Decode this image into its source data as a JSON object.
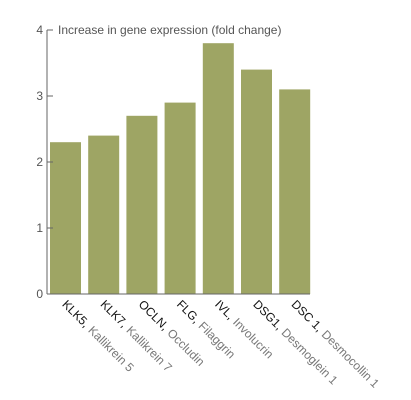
{
  "chart_data": {
    "type": "bar",
    "title": "",
    "xlabel": "",
    "ylabel": "Increase in gene expression (fold change)",
    "ylim": [
      0,
      4
    ],
    "yticks": [
      "0",
      "1",
      "2",
      "3",
      "4"
    ],
    "grid": false,
    "bar_color": "#9ea564",
    "axis_color": "#666666",
    "categories": [
      {
        "code": "KLK5,",
        "name": "Kallikrein 5"
      },
      {
        "code": "KLK7,",
        "name": "Kallikrein 7"
      },
      {
        "code": "OCLN,",
        "name": "Occludin"
      },
      {
        "code": "FLG,",
        "name": "Filaggrin"
      },
      {
        "code": "IVL,",
        "name": "Involucrin"
      },
      {
        "code": "DSG1,",
        "name": "Desmoglein 1"
      },
      {
        "code": "DSC 1,",
        "name": "Desmocollin 1"
      }
    ],
    "values": [
      2.3,
      2.4,
      2.7,
      2.9,
      3.8,
      3.4,
      3.1
    ]
  }
}
